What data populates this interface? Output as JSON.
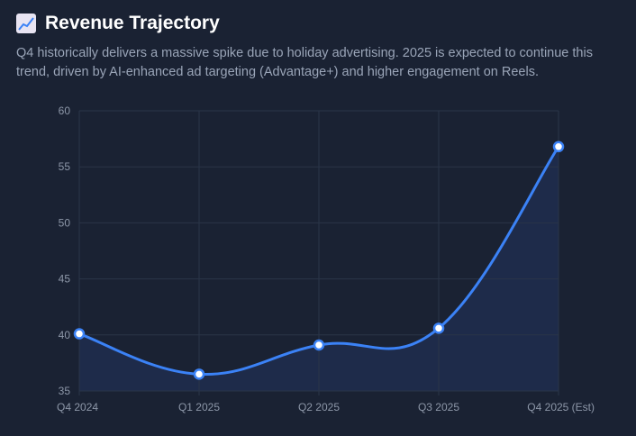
{
  "header": {
    "title": "Revenue Trajectory",
    "icon": "chart-increasing-icon",
    "description": "Q4 historically delivers a massive spike due to holiday advertising. 2025 is expected to continue this trend, driven by AI-enhanced ad targeting (Advantage+) and higher engagement on Reels."
  },
  "chart_data": {
    "type": "line",
    "title": "Revenue Trajectory",
    "xlabel": "",
    "ylabel": "",
    "categories": [
      "Q4 2024",
      "Q1 2025",
      "Q2 2025",
      "Q3 2025",
      "Q4 2025 (Est)"
    ],
    "series": [
      {
        "name": "Revenue",
        "values": [
          40.1,
          36.5,
          39.1,
          40.6,
          56.8
        ]
      }
    ],
    "ylim": [
      35,
      60
    ],
    "yticks": [
      "35",
      "40",
      "45",
      "50",
      "55",
      "60"
    ],
    "grid": true,
    "line_color": "#3b82f6",
    "fill_color": "#1e2b4a"
  }
}
